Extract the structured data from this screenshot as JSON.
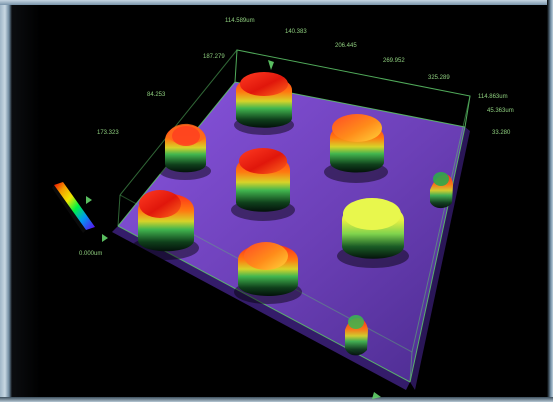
{
  "image": {
    "subject": "3D surface profile rendering",
    "colors": {
      "background": "#000000",
      "substrate": "#6b3fb6",
      "substrate_edge": "#3a1f76",
      "axes": "#5fc86a"
    }
  },
  "axis_labels": {
    "top_left_label": "114.589um",
    "tick_1": "140.383",
    "tick_2": "206.445",
    "tick_3": "269.952",
    "tick_4": "325.289",
    "right_label": "114.863um",
    "right_tick_1": "45.363um",
    "right_tick_2": "33.280",
    "left_tick_1": "187.279",
    "left_tick_2": "84.253",
    "left_tick_3": "173.323",
    "bottom_left_label": "0.000um"
  }
}
